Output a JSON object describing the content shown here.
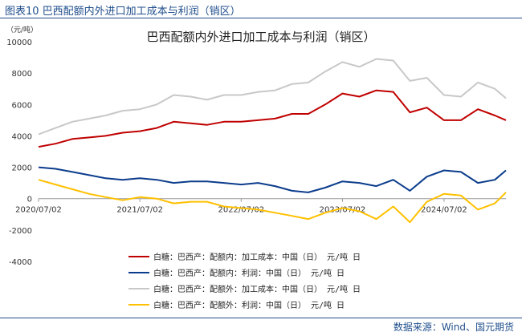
{
  "figure_title": "图表10 巴西配额内外进口加工成本与利润（销区）",
  "source": "数据来源：Wind、国元期货",
  "chart_data": {
    "type": "line",
    "title": "巴西配额内外进口加工成本与利润（销区）",
    "unit_label": "（元/吨）",
    "ylim": [
      -4000,
      10000
    ],
    "yticks": [
      -4000,
      -2000,
      0,
      2000,
      4000,
      6000,
      8000,
      10000
    ],
    "ytick_labels": [
      "-4000",
      "-2000",
      "0",
      "2000",
      "4000",
      "6000",
      "8000",
      "10000"
    ],
    "xlim": [
      "2020/07/02",
      "2025/02/10"
    ],
    "xticks": [
      "2020/07/02",
      "2021/07/02",
      "2022/07/02",
      "2023/07/02",
      "2024/07/02"
    ],
    "series": [
      {
        "name": "白糖：巴西产：配额内：加工成本：中国（日） 元/吨 日",
        "color": "#c00000",
        "x": [
          "2020/07/02",
          "2020/09/01",
          "2020/11/01",
          "2021/01/01",
          "2021/03/01",
          "2021/05/01",
          "2021/07/02",
          "2021/09/01",
          "2021/11/01",
          "2022/01/01",
          "2022/03/01",
          "2022/05/01",
          "2022/07/02",
          "2022/09/01",
          "2022/11/01",
          "2023/01/01",
          "2023/03/01",
          "2023/05/01",
          "2023/07/02",
          "2023/09/01",
          "2023/11/01",
          "2024/01/01",
          "2024/03/01",
          "2024/05/01",
          "2024/07/02",
          "2024/09/01",
          "2024/11/01",
          "2025/01/01",
          "2025/02/10"
        ],
        "y": [
          3300,
          3500,
          3800,
          3900,
          4000,
          4200,
          4300,
          4500,
          4900,
          4800,
          4700,
          4900,
          4900,
          5000,
          5100,
          5400,
          5400,
          6000,
          6700,
          6500,
          6900,
          6800,
          5500,
          5800,
          5000,
          5000,
          5700,
          5300,
          5000
        ]
      },
      {
        "name": "白糖：巴西产：配额内：利润：中国（日） 元/吨 日",
        "color": "#0b3c8c",
        "x": [
          "2020/07/02",
          "2020/09/01",
          "2020/11/01",
          "2021/01/01",
          "2021/03/01",
          "2021/05/01",
          "2021/07/02",
          "2021/09/01",
          "2021/11/01",
          "2022/01/01",
          "2022/03/01",
          "2022/05/01",
          "2022/07/02",
          "2022/09/01",
          "2022/11/01",
          "2023/01/01",
          "2023/03/01",
          "2023/05/01",
          "2023/07/02",
          "2023/09/01",
          "2023/11/01",
          "2024/01/01",
          "2024/03/01",
          "2024/05/01",
          "2024/07/02",
          "2024/09/01",
          "2024/11/01",
          "2025/01/01",
          "2025/02/10"
        ],
        "y": [
          2000,
          1900,
          1700,
          1500,
          1300,
          1200,
          1300,
          1200,
          1000,
          1100,
          1100,
          1000,
          900,
          1000,
          800,
          500,
          400,
          700,
          1100,
          1000,
          800,
          1200,
          500,
          1400,
          1800,
          1700,
          1000,
          1200,
          1800
        ]
      },
      {
        "name": "白糖：巴西产：配额外：加工成本：中国（日） 元/吨 日",
        "color": "#c8c8c8",
        "x": [
          "2020/07/02",
          "2020/09/01",
          "2020/11/01",
          "2021/01/01",
          "2021/03/01",
          "2021/05/01",
          "2021/07/02",
          "2021/09/01",
          "2021/11/01",
          "2022/01/01",
          "2022/03/01",
          "2022/05/01",
          "2022/07/02",
          "2022/09/01",
          "2022/11/01",
          "2023/01/01",
          "2023/03/01",
          "2023/05/01",
          "2023/07/02",
          "2023/09/01",
          "2023/11/01",
          "2024/01/01",
          "2024/03/01",
          "2024/05/01",
          "2024/07/02",
          "2024/09/01",
          "2024/11/01",
          "2025/01/01",
          "2025/02/10"
        ],
        "y": [
          4100,
          4500,
          4900,
          5100,
          5300,
          5600,
          5700,
          6000,
          6600,
          6500,
          6300,
          6600,
          6600,
          6800,
          6900,
          7300,
          7400,
          8100,
          8700,
          8400,
          8900,
          8800,
          7500,
          7700,
          6600,
          6500,
          7400,
          7000,
          6400
        ]
      },
      {
        "name": "白糖：巴西产：配额外：利润：中国（日） 元/吨 日",
        "color": "#ffc000",
        "x": [
          "2020/07/02",
          "2020/09/01",
          "2020/11/01",
          "2021/01/01",
          "2021/03/01",
          "2021/05/01",
          "2021/07/02",
          "2021/09/01",
          "2021/11/01",
          "2022/01/01",
          "2022/03/01",
          "2022/05/01",
          "2022/07/02",
          "2022/09/01",
          "2022/11/01",
          "2023/01/01",
          "2023/03/01",
          "2023/05/01",
          "2023/07/02",
          "2023/09/01",
          "2023/11/01",
          "2024/01/01",
          "2024/03/01",
          "2024/05/01",
          "2024/07/02",
          "2024/09/01",
          "2024/11/01",
          "2025/01/01",
          "2025/02/10"
        ],
        "y": [
          1200,
          900,
          600,
          300,
          100,
          -100,
          100,
          0,
          -300,
          -200,
          -200,
          -500,
          -600,
          -700,
          -900,
          -1100,
          -1300,
          -900,
          -600,
          -800,
          -1300,
          -500,
          -1500,
          -200,
          300,
          200,
          -700,
          -300,
          400
        ]
      }
    ],
    "legend_position": "bottom",
    "grid": false
  }
}
